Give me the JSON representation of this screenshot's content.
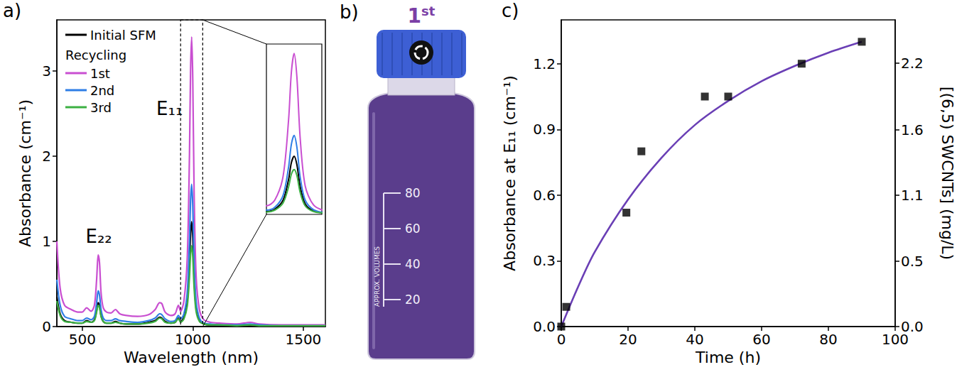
{
  "chart_data": [
    {
      "type": "line",
      "label": "a)",
      "x_label": "Wavelength (nm)",
      "y_label": "Absorbance (cm⁻¹)",
      "x": [
        385,
        400,
        420,
        450,
        480,
        500,
        520,
        540,
        555,
        565,
        572,
        578,
        585,
        595,
        610,
        630,
        650,
        670,
        700,
        750,
        800,
        830,
        850,
        860,
        875,
        900,
        920,
        935,
        945,
        960,
        975,
        985,
        990,
        995,
        1000,
        1006,
        1015,
        1030,
        1050,
        1080,
        1120,
        1200,
        1260,
        1300,
        1400,
        1500,
        1600
      ],
      "series": [
        {
          "name": "Initial SFM",
          "color": "#000000",
          "values": [
            0.35,
            0.15,
            0.07,
            0.05,
            0.04,
            0.04,
            0.07,
            0.05,
            0.08,
            0.19,
            0.28,
            0.25,
            0.13,
            0.06,
            0.04,
            0.04,
            0.06,
            0.04,
            0.03,
            0.03,
            0.05,
            0.07,
            0.11,
            0.1,
            0.06,
            0.04,
            0.05,
            0.1,
            0.06,
            0.11,
            0.3,
            0.74,
            1.09,
            1.23,
            1.05,
            0.58,
            0.22,
            0.07,
            0.03,
            0.02,
            0.02,
            0.01,
            0.02,
            0.01,
            0.01,
            0.01,
            0.01
          ]
        },
        {
          "name": "1st",
          "color": "#c94fd1",
          "values": [
            1.0,
            0.45,
            0.25,
            0.2,
            0.17,
            0.17,
            0.22,
            0.18,
            0.25,
            0.55,
            0.84,
            0.75,
            0.4,
            0.22,
            0.17,
            0.16,
            0.2,
            0.15,
            0.13,
            0.12,
            0.14,
            0.2,
            0.28,
            0.27,
            0.17,
            0.13,
            0.15,
            0.25,
            0.18,
            0.3,
            0.8,
            2.0,
            3.0,
            3.4,
            2.9,
            1.6,
            0.6,
            0.2,
            0.08,
            0.05,
            0.04,
            0.03,
            0.05,
            0.03,
            0.02,
            0.02,
            0.02
          ]
        },
        {
          "name": "2nd",
          "color": "#2f7ee6",
          "values": [
            0.55,
            0.25,
            0.12,
            0.09,
            0.07,
            0.07,
            0.1,
            0.08,
            0.12,
            0.28,
            0.42,
            0.37,
            0.2,
            0.1,
            0.07,
            0.07,
            0.09,
            0.07,
            0.06,
            0.05,
            0.07,
            0.1,
            0.15,
            0.14,
            0.09,
            0.06,
            0.07,
            0.13,
            0.09,
            0.15,
            0.4,
            1.0,
            1.48,
            1.67,
            1.42,
            0.78,
            0.3,
            0.1,
            0.04,
            0.03,
            0.02,
            0.02,
            0.03,
            0.02,
            0.01,
            0.01,
            0.01
          ]
        },
        {
          "name": "3rd",
          "color": "#3cb043",
          "values": [
            0.3,
            0.13,
            0.06,
            0.05,
            0.04,
            0.04,
            0.06,
            0.05,
            0.07,
            0.17,
            0.25,
            0.22,
            0.12,
            0.06,
            0.04,
            0.04,
            0.05,
            0.04,
            0.03,
            0.03,
            0.04,
            0.06,
            0.1,
            0.09,
            0.05,
            0.04,
            0.05,
            0.09,
            0.05,
            0.09,
            0.24,
            0.58,
            0.85,
            0.95,
            0.82,
            0.46,
            0.18,
            0.06,
            0.03,
            0.02,
            0.02,
            0.01,
            0.02,
            0.01,
            0.01,
            0.01,
            0.01
          ]
        }
      ],
      "xlim": [
        385,
        1600
      ],
      "xticks": [
        500,
        1000,
        1500
      ],
      "ylim": [
        0,
        3.6
      ],
      "yticks": [
        0,
        1,
        2,
        3
      ],
      "grid": false,
      "legend": "upper left",
      "legend_title": "Recycling",
      "annotations": [
        {
          "text": "E₂₂",
          "x": 575,
          "y": 0.95
        },
        {
          "text": "E₁₁",
          "x": 895,
          "y": 2.45
        }
      ],
      "inset": {
        "xlim": [
          945,
          1045
        ],
        "ylim": [
          0,
          3.6
        ],
        "tick_labels": false
      }
    },
    {
      "type": "scatter",
      "label": "c)",
      "x_label": "Time (h)",
      "y_label": "Absorbance at E₁₁ (cm⁻¹)",
      "y2_label": "[(6,5) SWCNTs] (mg/L)",
      "xlim": [
        0,
        100
      ],
      "xticks": [
        0,
        20,
        40,
        60,
        80,
        100
      ],
      "ylim": [
        0,
        1.4
      ],
      "yticks": [
        {
          "value": 0,
          "label": "0.0"
        },
        0.3,
        0.6,
        0.9,
        1.2
      ],
      "y2lim": [
        0,
        2.54
      ],
      "y2ticks": [
        {
          "value": 0,
          "label": "0.0"
        },
        {
          "value": 0.54,
          "label": "0.5"
        },
        {
          "value": 1.09,
          "label": "1.1"
        },
        {
          "value": 1.63,
          "label": "1.6"
        },
        {
          "value": 2.18,
          "label": "2.2"
        }
      ],
      "grid": false,
      "series": [
        {
          "type": "scatter",
          "color": "#000000",
          "marker": "square",
          "x": [
            0,
            1.5,
            19.5,
            24,
            43,
            50,
            72,
            90
          ],
          "values": [
            0.0,
            0.09,
            0.52,
            0.8,
            1.05,
            1.05,
            1.2,
            1.3
          ]
        },
        {
          "type": "line",
          "color": "#6a3fb5",
          "line_style": "solid",
          "x": [
            0,
            5,
            10,
            20,
            30,
            40,
            50,
            60,
            70,
            80,
            90
          ],
          "values": [
            0,
            0.18,
            0.34,
            0.58,
            0.77,
            0.92,
            1.03,
            1.12,
            1.19,
            1.25,
            1.3
          ]
        }
      ]
    }
  ],
  "photo": {
    "label": "b)",
    "title": "1st",
    "graduations": [
      80,
      60,
      40,
      20
    ],
    "graduation_text": "APPROX. VOLUMES"
  }
}
